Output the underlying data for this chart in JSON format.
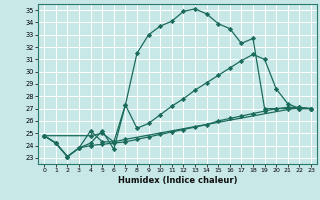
{
  "xlabel": "Humidex (Indice chaleur)",
  "background_color": "#c8e8e8",
  "grid_color": "#ffffff",
  "line_color": "#1a6b5a",
  "xlim": [
    -0.5,
    23.5
  ],
  "ylim": [
    22.5,
    35.5
  ],
  "xticks": [
    0,
    1,
    2,
    3,
    4,
    5,
    6,
    7,
    8,
    9,
    10,
    11,
    12,
    13,
    14,
    15,
    16,
    17,
    18,
    19,
    20,
    21,
    22,
    23
  ],
  "yticks": [
    23,
    24,
    25,
    26,
    27,
    28,
    29,
    30,
    31,
    32,
    33,
    34,
    35
  ],
  "series": [
    {
      "x": [
        0,
        1,
        2,
        3,
        4,
        5,
        6,
        7,
        8,
        9,
        10,
        11,
        12,
        13,
        14,
        15,
        16,
        17,
        18,
        19,
        20,
        21,
        22,
        23
      ],
      "y": [
        24.8,
        24.2,
        23.1,
        23.8,
        24.2,
        25.2,
        23.7,
        27.3,
        31.5,
        33.0,
        33.7,
        34.1,
        34.9,
        35.1,
        34.7,
        33.9,
        33.5,
        32.3,
        32.7,
        27.0,
        27.0,
        27.0,
        27.0,
        27.0
      ]
    },
    {
      "x": [
        0,
        1,
        2,
        3,
        4,
        5,
        6,
        7,
        8,
        9,
        10,
        11,
        12,
        13,
        14,
        15,
        16,
        17,
        18,
        19,
        20,
        21,
        22,
        23
      ],
      "y": [
        24.8,
        24.2,
        23.1,
        23.8,
        25.2,
        24.3,
        24.3,
        27.3,
        25.4,
        25.8,
        26.5,
        27.2,
        27.8,
        28.5,
        29.1,
        29.7,
        30.3,
        30.9,
        31.4,
        31.0,
        28.6,
        27.4,
        27.0,
        27.0
      ]
    },
    {
      "x": [
        0,
        4,
        5,
        6,
        7,
        22,
        23
      ],
      "y": [
        24.8,
        24.8,
        25.0,
        24.3,
        24.5,
        27.1,
        27.0
      ]
    },
    {
      "x": [
        0,
        1,
        2,
        3,
        4,
        5,
        6,
        7,
        8,
        9,
        10,
        11,
        12,
        13,
        14,
        15,
        16,
        17,
        18,
        19,
        20,
        21,
        22,
        23
      ],
      "y": [
        24.8,
        24.2,
        23.1,
        23.8,
        24.0,
        24.1,
        24.2,
        24.3,
        24.5,
        24.7,
        24.9,
        25.1,
        25.3,
        25.5,
        25.7,
        26.0,
        26.2,
        26.4,
        26.6,
        26.8,
        27.0,
        27.1,
        27.1,
        27.0
      ]
    }
  ]
}
